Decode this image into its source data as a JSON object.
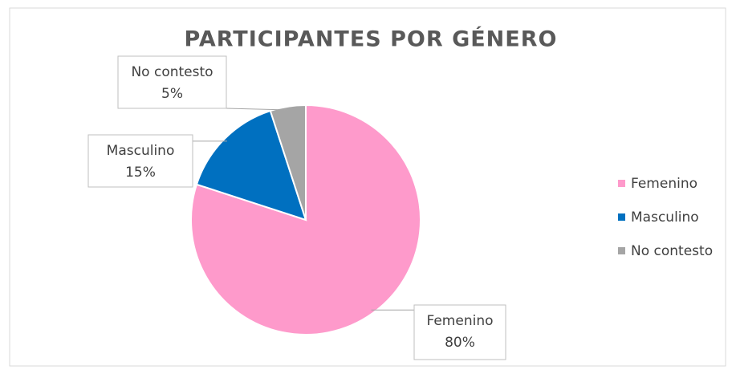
{
  "chart_data": {
    "type": "pie",
    "title": "PARTICIPANTES POR GÉNERO",
    "categories": [
      "Femenino",
      "Masculino",
      "No contesto"
    ],
    "values": [
      80,
      15,
      5
    ],
    "value_labels": [
      "80%",
      "15%",
      "5%"
    ],
    "colors": [
      "#fe9acb",
      "#0070c0",
      "#a5a5a5"
    ],
    "legend": "right"
  }
}
